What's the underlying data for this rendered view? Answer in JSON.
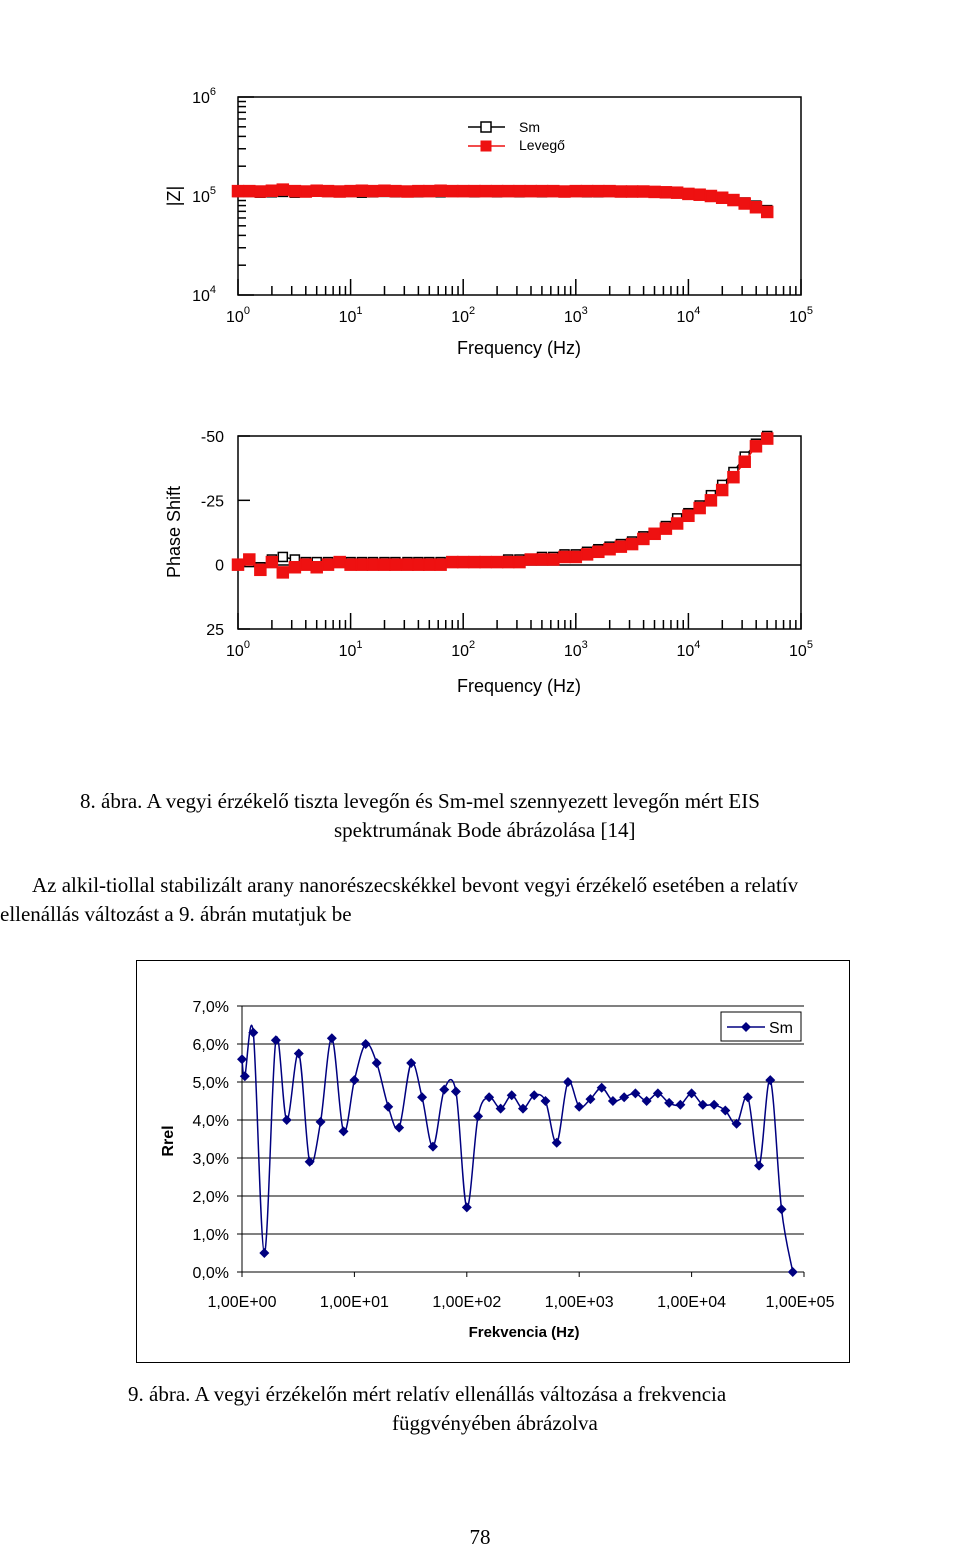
{
  "figure8": {
    "caption_line1": "8.   ábra. A vegyi érzékelő tiszta levegőn és Sm-mel szennyezett levegőn mért EIS",
    "caption_line2": "spektrumának Bode ábrázolása [14]",
    "legend": [
      "Sm",
      "Levegő"
    ],
    "colors": {
      "sm": "#000000",
      "levego": "#ee1111"
    },
    "chart_data": [
      {
        "type": "scatter",
        "ylabel": "|Z|",
        "xlabel": "Frequency (Hz)",
        "xscale": "log",
        "yscale": "log",
        "xlim": [
          1,
          100000
        ],
        "ylim": [
          10000,
          1000000
        ],
        "xtick_labels": [
          {
            "b": "10",
            "e": "0"
          },
          {
            "b": "10",
            "e": "1"
          },
          {
            "b": "10",
            "e": "2"
          },
          {
            "b": "10",
            "e": "3"
          },
          {
            "b": "10",
            "e": "4"
          },
          {
            "b": "10",
            "e": "5"
          }
        ],
        "ytick_labels": [
          {
            "b": "10",
            "e": "6"
          },
          {
            "b": "10",
            "e": "5"
          },
          {
            "b": "10",
            "e": "4"
          }
        ],
        "series": [
          {
            "name": "Sm",
            "marker": "hollow-square",
            "x": [
              1,
              1.26,
              1.58,
              2,
              2.5,
              3.2,
              4,
              5,
              6.3,
              8,
              10,
              12.6,
              15.8,
              20,
              25,
              32,
              40,
              50,
              63,
              80,
              100,
              126,
              158,
              200,
              251,
              316,
              398,
              501,
              631,
              794,
              1000,
              1259,
              1585,
              1995,
              2512,
              3162,
              3981,
              5012,
              6310,
              7943,
              10000,
              12589,
              15849,
              19953,
              25119,
              31623,
              39811,
              50119
            ],
            "y": [
              110000,
              110000,
              108000,
              109000,
              110000,
              108000,
              109000,
              111000,
              110000,
              109000,
              110000,
              108000,
              109000,
              110000,
              109000,
              110000,
              109000,
              110000,
              109000,
              110000,
              110000,
              109000,
              110000,
              109000,
              110000,
              109000,
              110000,
              109000,
              110000,
              109000,
              110000,
              109000,
              109000,
              110000,
              109000,
              109000,
              110000,
              109000,
              108000,
              107000,
              105000,
              103000,
              100000,
              96000,
              91000,
              86000,
              80000,
              72000
            ]
          },
          {
            "name": "Levegő",
            "marker": "filled-square",
            "x": [
              1,
              1.26,
              1.58,
              2,
              2.5,
              3.2,
              4,
              5,
              6.3,
              8,
              10,
              12.6,
              15.8,
              20,
              25,
              32,
              40,
              50,
              63,
              80,
              100,
              126,
              158,
              200,
              251,
              316,
              398,
              501,
              631,
              794,
              1000,
              1259,
              1585,
              1995,
              2512,
              3162,
              3981,
              5012,
              6310,
              7943,
              10000,
              12589,
              15849,
              19953,
              25119,
              31623,
              39811,
              50119
            ],
            "y": [
              112000,
              112000,
              111000,
              113000,
              116000,
              112000,
              111000,
              113000,
              112000,
              111000,
              112000,
              113000,
              112000,
              113000,
              112000,
              111000,
              112000,
              112000,
              113000,
              112000,
              112000,
              112000,
              112000,
              112000,
              112000,
              112000,
              112000,
              112000,
              112000,
              111000,
              112000,
              112000,
              112000,
              112000,
              111000,
              111000,
              111000,
              110000,
              109000,
              108000,
              105000,
              103000,
              100000,
              96000,
              91000,
              84000,
              77000,
              69000
            ]
          }
        ]
      },
      {
        "type": "scatter",
        "ylabel": "Phase Shift",
        "xlabel": "Frequency (Hz)",
        "xscale": "log",
        "xlim": [
          1,
          100000
        ],
        "ylim": [
          25,
          -50
        ],
        "ytick_labels": [
          "-50",
          "-25",
          "0",
          "25"
        ],
        "xtick_labels": [
          {
            "b": "10",
            "e": "0"
          },
          {
            "b": "10",
            "e": "1"
          },
          {
            "b": "10",
            "e": "2"
          },
          {
            "b": "10",
            "e": "3"
          },
          {
            "b": "10",
            "e": "4"
          },
          {
            "b": "10",
            "e": "5"
          }
        ],
        "series": [
          {
            "name": "Sm",
            "marker": "hollow-square",
            "x": [
              1,
              1.26,
              1.58,
              2,
              2.5,
              3.2,
              4,
              5,
              6.3,
              8,
              10,
              12.6,
              15.8,
              20,
              25,
              32,
              40,
              50,
              63,
              80,
              100,
              126,
              158,
              200,
              251,
              316,
              398,
              501,
              631,
              794,
              1000,
              1259,
              1585,
              1995,
              2512,
              3162,
              3981,
              5012,
              6310,
              7943,
              10000,
              12589,
              15849,
              19953,
              25119,
              31623,
              39811,
              50119
            ],
            "y": [
              0,
              -1,
              1,
              -2,
              -3,
              -2,
              -1,
              -1,
              -1,
              -1,
              -1,
              -1,
              -1,
              -1,
              -1,
              -1,
              -1,
              -1,
              -1,
              -1,
              -1,
              -1,
              -1,
              -1,
              -2,
              -2,
              -2,
              -3,
              -3,
              -4,
              -4,
              -5,
              -6,
              -7,
              -8,
              -9,
              -11,
              -12,
              -15,
              -18,
              -20,
              -23,
              -27,
              -31,
              -36,
              -42,
              -47,
              -50
            ]
          },
          {
            "name": "Levegő",
            "marker": "filled-square",
            "x": [
              1,
              1.26,
              1.58,
              2,
              2.5,
              3.2,
              4,
              5,
              6.3,
              8,
              10,
              12.6,
              15.8,
              20,
              25,
              32,
              40,
              50,
              63,
              80,
              100,
              126,
              158,
              200,
              251,
              316,
              398,
              501,
              631,
              794,
              1000,
              1259,
              1585,
              1995,
              2512,
              3162,
              3981,
              5012,
              6310,
              7943,
              10000,
              12589,
              15849,
              19953,
              25119,
              31623,
              39811,
              50119
            ],
            "y": [
              0,
              -2,
              2,
              -1,
              3,
              1,
              0,
              1,
              0,
              -1,
              0,
              0,
              0,
              0,
              0,
              0,
              0,
              0,
              0,
              -1,
              -1,
              -1,
              -1,
              -1,
              -1,
              -1,
              -2,
              -2,
              -2,
              -3,
              -3,
              -4,
              -5,
              -6,
              -7,
              -8,
              -10,
              -12,
              -14,
              -16,
              -19,
              -22,
              -25,
              -29,
              -34,
              -40,
              -46,
              -49
            ]
          }
        ]
      }
    ]
  },
  "paragraph": {
    "line1": "Az alkil-tiollal stabilizált arany nanorészecskékkel bevont vegyi érzékelő esetében a relatív",
    "line2": "ellenállás változást a 9. ábrán mutatjuk be"
  },
  "figure9": {
    "caption_line1": "9.   ábra. A vegyi érzékelőn mért relatív ellenállás változása a frekvencia",
    "caption_line2": "függvényében ábrázolva",
    "colors": {
      "series": "#000080"
    },
    "chart_data": {
      "type": "line",
      "xlabel": "Frekvencia (Hz)",
      "ylabel": "Rrel",
      "xscale": "log",
      "xlim": [
        1,
        100000
      ],
      "ylim": [
        0,
        7
      ],
      "grid": "horizontal",
      "legend": "top-right",
      "ytick_labels": [
        "0,0%",
        "1,0%",
        "2,0%",
        "3,0%",
        "4,0%",
        "5,0%",
        "6,0%",
        "7,0%"
      ],
      "xtick_labels": [
        "1,00E+00",
        "1,00E+01",
        "1,00E+02",
        "1,00E+03",
        "1,00E+04",
        "1,00E+05"
      ],
      "series": [
        {
          "name": "Sm",
          "x": [
            1,
            1.06,
            1.26,
            1.58,
            2,
            2.5,
            3.2,
            4,
            5,
            6.3,
            8,
            10,
            12.6,
            15.8,
            20,
            25,
            32,
            40,
            50,
            63,
            80,
            100,
            126,
            158,
            200,
            251,
            316,
            398,
            501,
            631,
            794,
            1000,
            1259,
            1585,
            1995,
            2512,
            3162,
            3981,
            5012,
            6310,
            7943,
            10000,
            12589,
            15849,
            19953,
            25119,
            31623,
            39811,
            50119,
            63096,
            79433
          ],
          "y": [
            5.6,
            5.15,
            6.3,
            0.5,
            6.1,
            4.0,
            5.75,
            2.9,
            3.95,
            6.15,
            3.7,
            5.05,
            6.0,
            5.5,
            4.35,
            3.8,
            5.5,
            4.6,
            3.3,
            4.8,
            4.75,
            1.7,
            4.1,
            4.6,
            4.3,
            4.65,
            4.3,
            4.65,
            4.5,
            3.4,
            5.0,
            4.35,
            4.55,
            4.85,
            4.5,
            4.6,
            4.7,
            4.5,
            4.7,
            4.45,
            4.4,
            4.7,
            4.4,
            4.4,
            4.25,
            3.9,
            4.6,
            2.8,
            5.05,
            1.65,
            0
          ]
        }
      ]
    }
  },
  "page_number": "78"
}
